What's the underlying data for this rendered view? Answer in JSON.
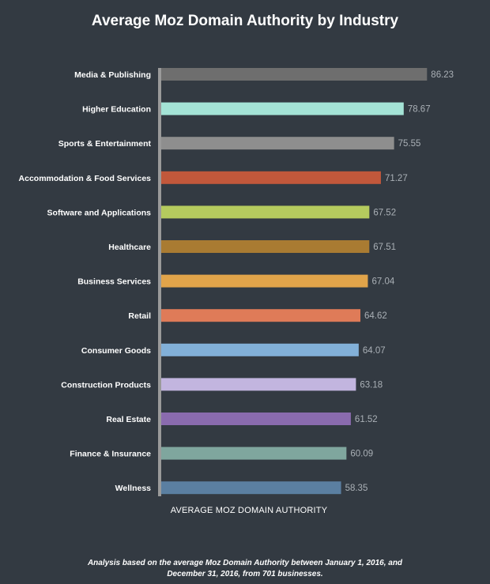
{
  "chart_data": {
    "type": "bar",
    "orientation": "horizontal",
    "title": "Average Moz Domain Authority by Industry",
    "xlabel": "AVERAGE MOZ DOMAIN AUTHORITY",
    "ylabel": "",
    "xlim": [
      0,
      100
    ],
    "grid": false,
    "legend": "none",
    "categories": [
      "Media & Publishing",
      "Higher Education",
      "Sports & Entertainment",
      "Accommodation & Food Services",
      "Software and Applications",
      "Healthcare",
      "Business Services",
      "Retail",
      "Consumer Goods",
      "Construction Products",
      "Real Estate",
      "Finance & Insurance",
      "Wellness"
    ],
    "values": [
      86.23,
      78.67,
      75.55,
      71.27,
      67.52,
      67.51,
      67.04,
      64.62,
      64.07,
      63.18,
      61.52,
      60.09,
      58.35
    ],
    "value_labels": [
      "86.23",
      "78.67",
      "75.55",
      "71.27",
      "67.52",
      "67.51",
      "67.04",
      "64.62",
      "64.07",
      "63.18",
      "61.52",
      "60.09",
      "58.35"
    ],
    "colors": [
      "#6e6e6e",
      "#a4e3d6",
      "#8e8e8e",
      "#c2583b",
      "#b5cb5e",
      "#a97b32",
      "#e1a44a",
      "#df7b58",
      "#82b0d8",
      "#c2b5df",
      "#8a6bae",
      "#7fa69e",
      "#5b7fa1"
    ]
  },
  "footnote": "Analysis based on the average Moz Domain Authority between January 1, 2016, and December 31, 2016, from 701 businesses.",
  "colors": {
    "background": "#333a42",
    "axis": "#9a9a9a",
    "value_text": "#aab0b6"
  }
}
